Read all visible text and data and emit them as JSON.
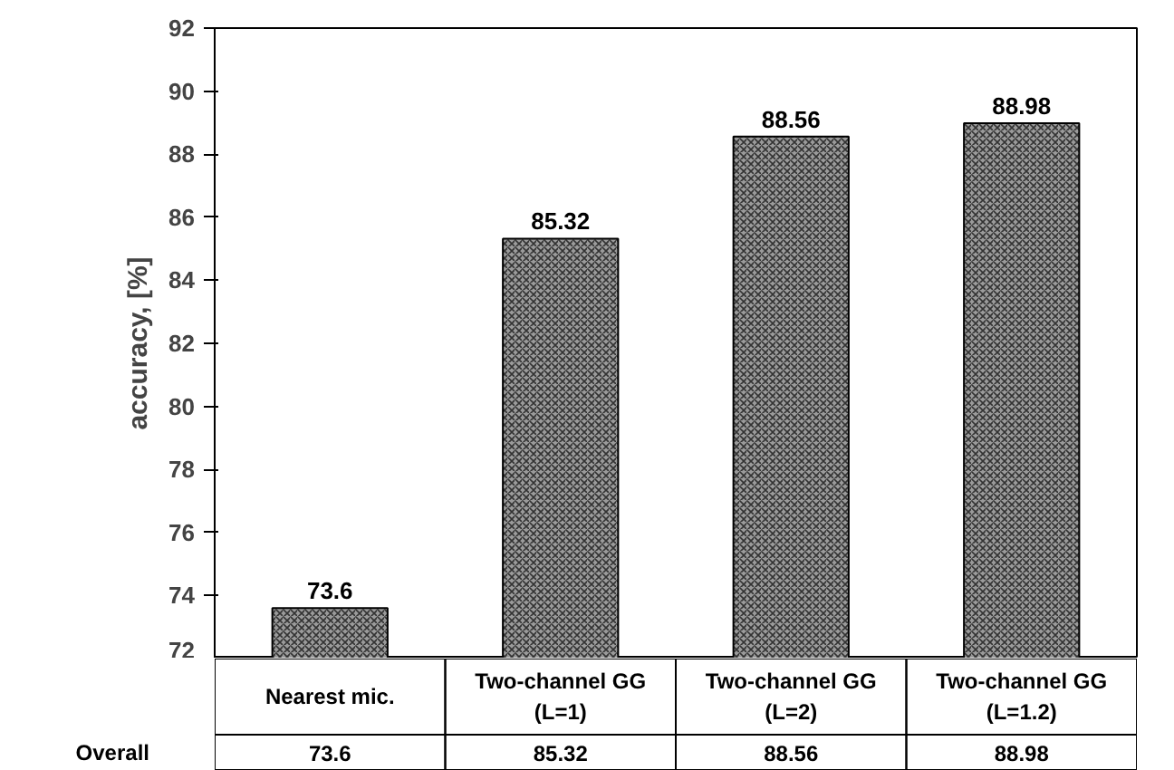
{
  "chart_data": {
    "type": "bar",
    "ylabel": "accuracy, [%]",
    "categories": [
      "Nearest mic.",
      "Two-channel GG\n(L=1)",
      "Two-channel GG\n(L=2)",
      "Two-channel GG\n(L=1.2)"
    ],
    "values": [
      73.6,
      85.32,
      88.56,
      88.98
    ],
    "color": "#9a9a9a",
    "ylim": [
      72,
      92
    ],
    "yticks": [
      72,
      74,
      76,
      78,
      80,
      82,
      84,
      86,
      88,
      90,
      92
    ],
    "data_labels": true,
    "grid": false,
    "annotations": [
      "Overall",
      "73.6",
      "85.32",
      "88.56",
      "88.98"
    ]
  }
}
